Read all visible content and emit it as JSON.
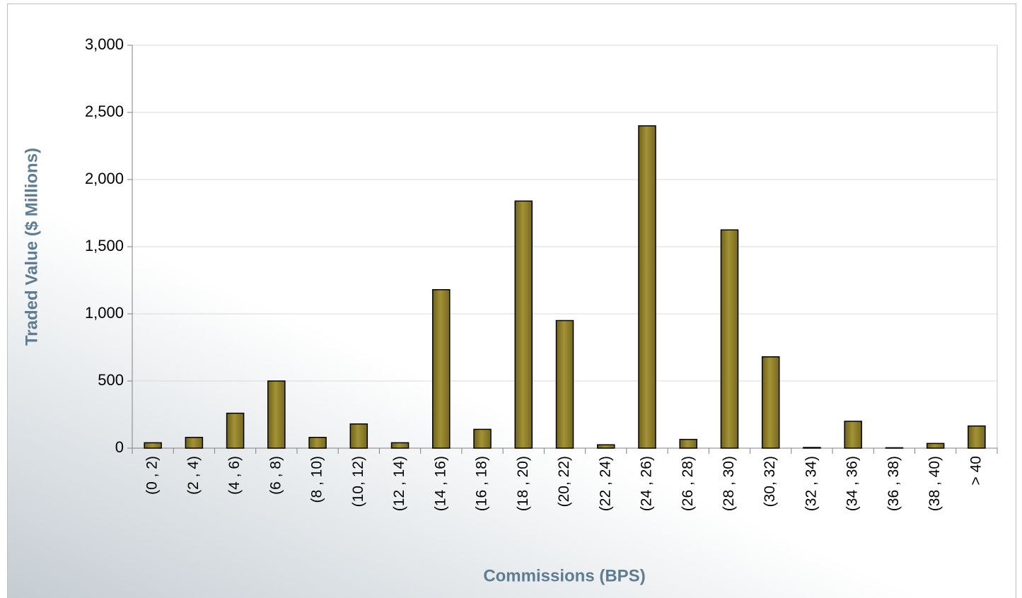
{
  "chart_data": {
    "type": "bar",
    "x_label": "Commissions (BPS)",
    "y_label": "Traded Value ($ Millions)",
    "categories": [
      "(0 , 2)",
      "(2 , 4)",
      "(4 , 6)",
      "(6 , 8)",
      "(8 , 10)",
      "(10, 12)",
      "(12 , 14)",
      "(14 , 16)",
      "(16 , 18)",
      "(18 , 20)",
      "(20, 22)",
      "(22 , 24)",
      "(24 , 26)",
      "(26 , 28)",
      "(28 , 30)",
      "(30, 32)",
      "(32 , 34)",
      "(34 , 36)",
      "(36 , 38)",
      "(38 , 40)",
      "> 40"
    ],
    "values": [
      40,
      80,
      260,
      500,
      80,
      180,
      40,
      1180,
      140,
      1840,
      950,
      25,
      2400,
      65,
      1625,
      680,
      5,
      200,
      3,
      35,
      165
    ],
    "color": "#8c7c2b",
    "ylim": [
      0,
      3000
    ],
    "yticks": [
      0,
      500,
      {
        "value": 1000,
        "label": "1,000"
      },
      {
        "value": 1500,
        "label": "1,500"
      },
      {
        "value": 2000,
        "label": "2,000"
      },
      {
        "value": 2500,
        "label": "2,500"
      },
      {
        "value": 3000,
        "label": "3,000"
      }
    ],
    "grid": true
  }
}
